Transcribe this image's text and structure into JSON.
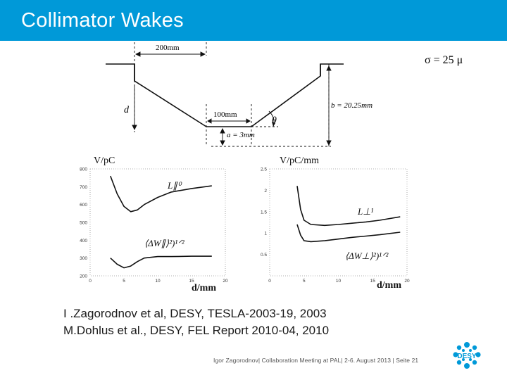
{
  "slide": {
    "title": "Collimator Wakes",
    "references": [
      "I .Zagorodnov et al, DESY, TESLA-2003-19, 2003",
      "M.Dohlus et al., DESY, FEL Report 2010-04, 2010"
    ],
    "footer": "Igor Zagorodnov| Collaboration Meeting at PAL| 2-6. August 2013 | Seite 21",
    "logo_text": "DESY"
  },
  "geometry_figure": {
    "top_width_label": "200mm",
    "flat_width_label": "100mm",
    "gap_label": "a = 3mm",
    "depth_label": "d",
    "half_height_label": "b = 20.25mm",
    "angle_label": "θ",
    "sigma_label": "σ = 25   μ"
  },
  "chart_data": [
    {
      "type": "line",
      "xlabel": "d/mm",
      "ylabel": "V/pC",
      "xlim": [
        0,
        20
      ],
      "ylim": [
        200,
        800
      ],
      "x_ticks": [
        "0",
        "5",
        "10",
        "15",
        "20"
      ],
      "y_ticks": [
        "200",
        "300",
        "400",
        "500",
        "600",
        "700",
        "800"
      ],
      "annotations": [
        "L∥⁰",
        "⟨ΔW∥⟩²)¹ᐟ²"
      ],
      "series": [
        {
          "x": [
            3,
            4,
            5,
            6,
            7,
            8,
            10,
            12,
            15,
            18
          ],
          "values": [
            760,
            660,
            590,
            560,
            570,
            600,
            640,
            670,
            690,
            705
          ]
        },
        {
          "x": [
            3,
            4,
            5,
            6,
            7,
            8,
            10,
            12,
            15,
            18
          ],
          "values": [
            300,
            265,
            245,
            255,
            280,
            300,
            308,
            308,
            310,
            310
          ]
        }
      ]
    },
    {
      "type": "line",
      "xlabel": "d/mm",
      "ylabel": "V/pC/mm",
      "xlim": [
        0,
        20
      ],
      "ylim": [
        0,
        2.5
      ],
      "x_ticks": [
        "0",
        "5",
        "10",
        "15",
        "20"
      ],
      "y_ticks": [
        "0.5",
        "1",
        "1.5",
        "2",
        "2.5"
      ],
      "annotations": [
        "L⊥¹",
        "⟨ΔW⊥⟩²)¹ᐟ²"
      ],
      "series": [
        {
          "x": [
            4,
            4.5,
            5,
            6,
            8,
            10,
            12,
            14,
            16,
            19
          ],
          "values": [
            2.1,
            1.55,
            1.3,
            1.2,
            1.18,
            1.2,
            1.23,
            1.26,
            1.3,
            1.38
          ]
        },
        {
          "x": [
            4,
            4.5,
            5,
            6,
            8,
            10,
            12,
            14,
            16,
            19
          ],
          "values": [
            1.2,
            0.95,
            0.82,
            0.8,
            0.82,
            0.86,
            0.9,
            0.93,
            0.96,
            1.02
          ]
        }
      ]
    }
  ]
}
